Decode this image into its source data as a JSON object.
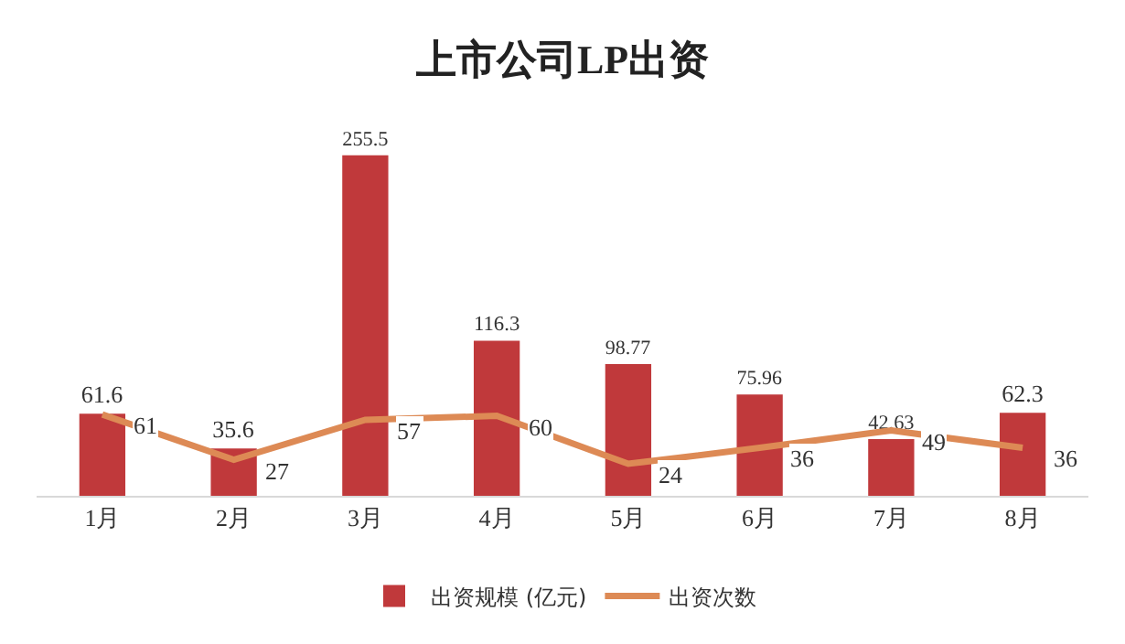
{
  "chart_data": {
    "type": "bar",
    "title": "上市公司LP出资",
    "categories": [
      "1月",
      "2月",
      "3月",
      "4月",
      "5月",
      "6月",
      "7月",
      "8月"
    ],
    "series": [
      {
        "name": "出资规模 (亿元)",
        "color": "#c0393b",
        "values": [
          61.6,
          35.6,
          255.5,
          116.3,
          98.77,
          75.96,
          42.63,
          62.3
        ]
      },
      {
        "name": "出资次数",
        "type": "line",
        "color": "#dd8a55",
        "values": [
          61,
          27,
          57,
          60,
          24,
          36,
          49,
          36
        ]
      }
    ],
    "data_labels": true,
    "legend": "bottom",
    "grid": false,
    "tick_labels": "x",
    "marker": "none",
    "line_style": "solid"
  }
}
